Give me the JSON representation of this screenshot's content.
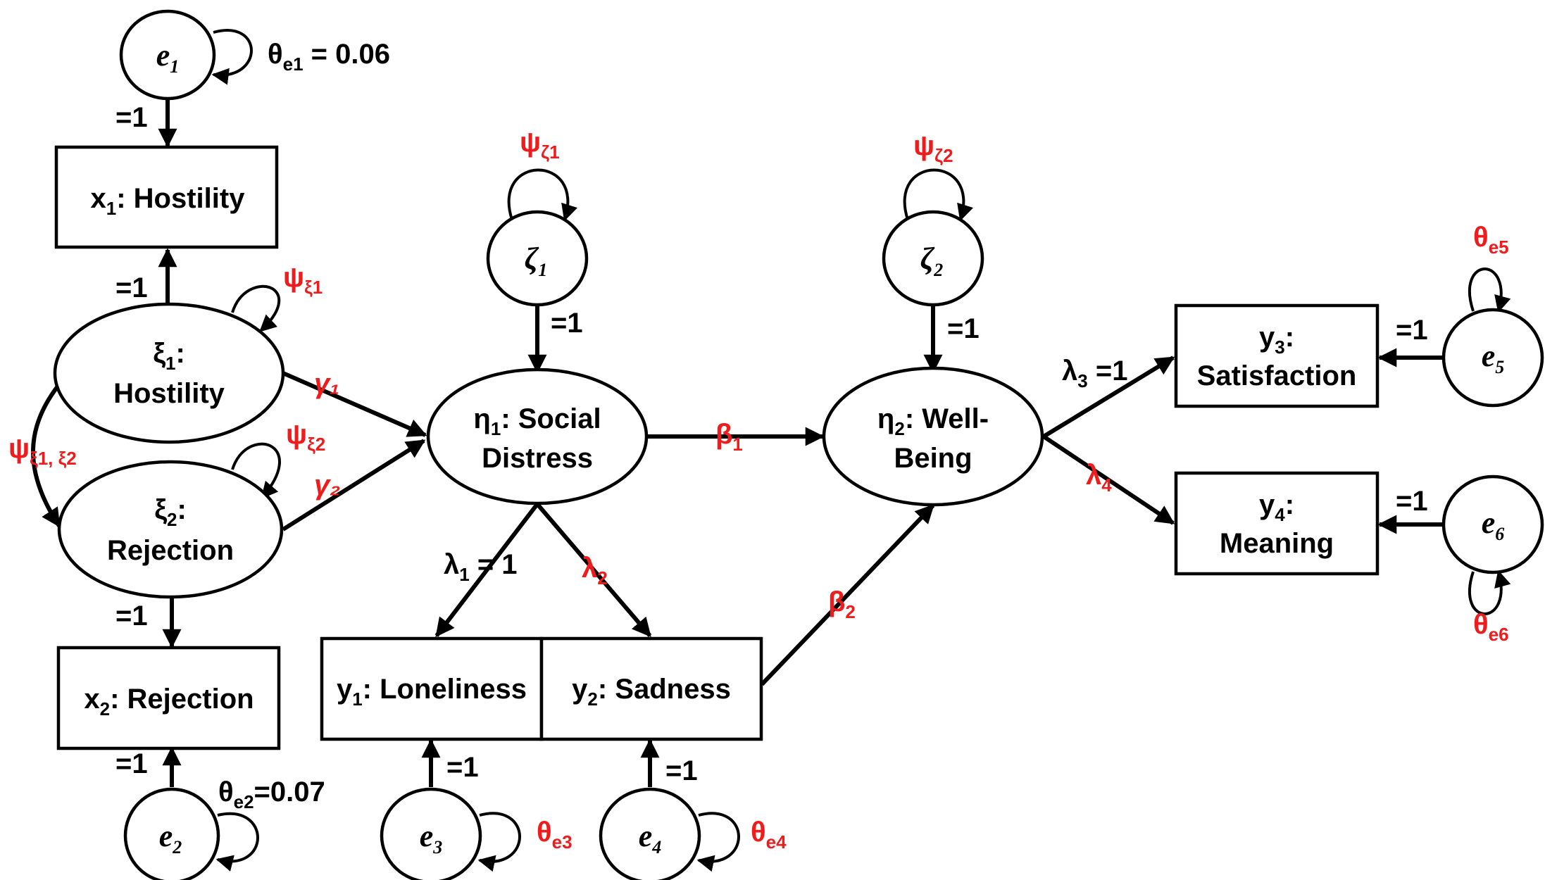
{
  "colors": {
    "line": "#000000",
    "parameter": "#ee1c1c",
    "text": "#000000"
  },
  "nodes": {
    "e1": {
      "sym": "e",
      "sub": "1"
    },
    "e2": {
      "sym": "e",
      "sub": "2"
    },
    "e3": {
      "sym": "e",
      "sub": "3"
    },
    "e4": {
      "sym": "e",
      "sub": "4"
    },
    "e5": {
      "sym": "e",
      "sub": "5"
    },
    "e6": {
      "sym": "e",
      "sub": "6"
    },
    "zeta1": {
      "sym": "ζ",
      "sub": "1"
    },
    "zeta2": {
      "sym": "ζ",
      "sub": "2"
    },
    "xi1": {
      "sym": "ξ",
      "sub": "1",
      "suffix": ":",
      "line2": "Hostility"
    },
    "xi2": {
      "sym": "ξ",
      "sub": "2",
      "suffix": ":",
      "line2": "Rejection"
    },
    "eta1": {
      "sym": "η",
      "sub": "1",
      "suffix": ": Social",
      "line2": "Distress"
    },
    "eta2": {
      "sym": "η",
      "sub": "2",
      "suffix": ": Well-",
      "line2": "Being"
    },
    "x1": {
      "sym": "x",
      "sub": "1",
      "suffix": ": Hostility"
    },
    "x2": {
      "sym": "x",
      "sub": "2",
      "suffix": ": Rejection"
    },
    "y1": {
      "sym": "y",
      "sub": "1",
      "suffix": ": Loneliness"
    },
    "y2": {
      "sym": "y",
      "sub": "2",
      "suffix": ": Sadness"
    },
    "y3": {
      "sym": "y",
      "sub": "3",
      "suffix": ":",
      "line2": "Satisfaction"
    },
    "y4": {
      "sym": "y",
      "sub": "4",
      "suffix": ":",
      "line2": "Meaning"
    }
  },
  "labels": {
    "fixed_one": "=1",
    "theta_e1": {
      "sym": "θ",
      "sub": "e1",
      "suffix": " = 0.06"
    },
    "theta_e2": {
      "sym": "θ",
      "sub": "e2",
      "suffix": "=0.07"
    },
    "theta_e3": {
      "sym": "θ",
      "sub": "e3"
    },
    "theta_e4": {
      "sym": "θ",
      "sub": "e4"
    },
    "theta_e5": {
      "sym": "θ",
      "sub": "e5"
    },
    "theta_e6": {
      "sym": "θ",
      "sub": "e6"
    },
    "psi_xi1": {
      "sym": "ψ",
      "sub": "ξ1"
    },
    "psi_xi2": {
      "sym": "ψ",
      "sub": "ξ2"
    },
    "psi_xi12": {
      "sym": "ψ",
      "sub": "ξ1, ξ2"
    },
    "psi_zeta1": {
      "sym": "ψ",
      "sub": "ζ1"
    },
    "psi_zeta2": {
      "sym": "ψ",
      "sub": "ζ2"
    },
    "gamma1": "γ₁",
    "gamma2": "γ₂",
    "beta1": {
      "sym": "β",
      "sub": "1"
    },
    "beta2": {
      "sym": "β",
      "sub": "2"
    },
    "lambda1": {
      "sym": "λ",
      "sub": "1",
      "suffix": " = 1"
    },
    "lambda2": {
      "sym": "λ",
      "sub": "2"
    },
    "lambda3": {
      "sym": "λ",
      "sub": "3",
      "suffix": " =1"
    },
    "lambda4": {
      "sym": "λ",
      "sub": "4"
    }
  }
}
